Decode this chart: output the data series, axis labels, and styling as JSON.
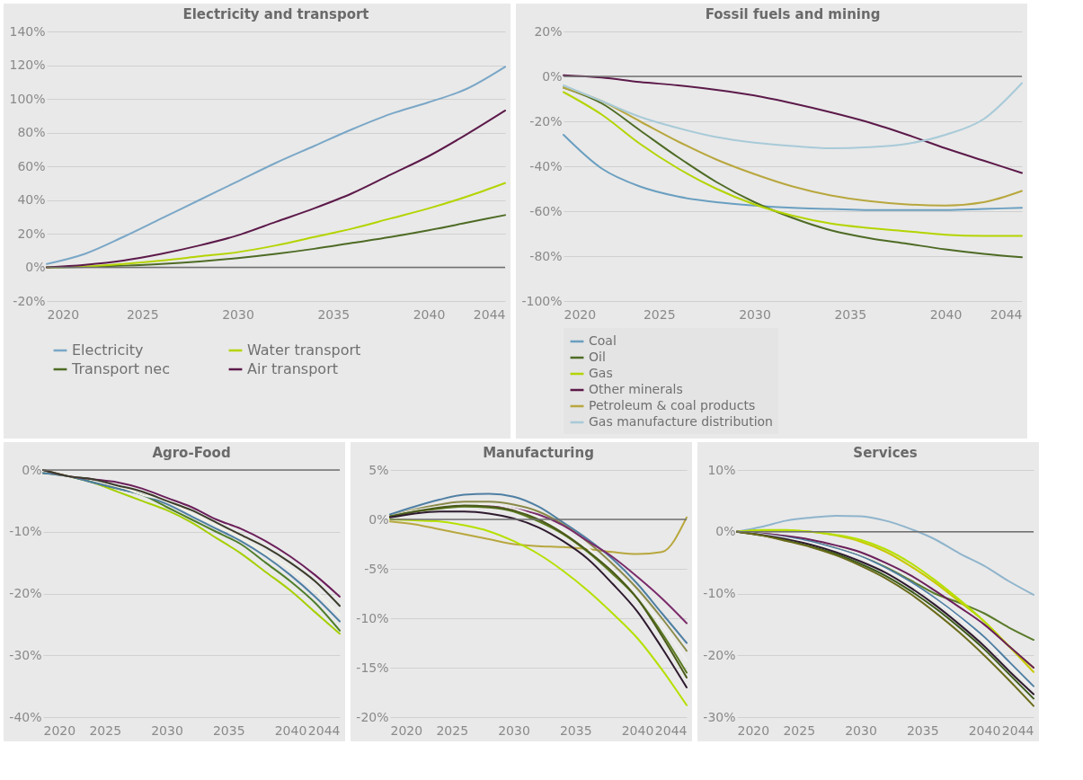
{
  "chart_data": [
    {
      "type": "line",
      "title": "Electricity and transport",
      "x": [
        2020,
        2022,
        2024,
        2026,
        2028,
        2030,
        2032,
        2034,
        2036,
        2038,
        2040,
        2042,
        2044
      ],
      "xlim": [
        2020,
        2044
      ],
      "xticks": [
        2020,
        2025,
        2030,
        2035,
        2040,
        2044
      ],
      "ylim": [
        -20,
        140
      ],
      "yticks": [
        {
          "value": -20,
          "label": "-20%"
        },
        {
          "value": 0,
          "label": "0%"
        },
        {
          "value": 20,
          "label": "20%"
        },
        {
          "value": 40,
          "label": "40%"
        },
        {
          "value": 60,
          "label": "60%"
        },
        {
          "value": 80,
          "label": "80%"
        },
        {
          "value": 100,
          "label": "100%"
        },
        {
          "value": 120,
          "label": "120%"
        },
        {
          "value": 140,
          "label": "140%"
        }
      ],
      "grid": "y",
      "legend": "bottom",
      "ref_lines": [
        {
          "axis": "y",
          "value": 0
        }
      ],
      "series": [
        {
          "name": "Electricity",
          "color": "#7aa7c7",
          "values": [
            2,
            8,
            18,
            29,
            40,
            51,
            62,
            72,
            82,
            91,
            98,
            106,
            119
          ]
        },
        {
          "name": "Transport nec",
          "color": "#4e6b25",
          "values": [
            0,
            0.3,
            1,
            2,
            3.5,
            5.5,
            8,
            11,
            14.5,
            18,
            22,
            26.5,
            31
          ]
        },
        {
          "name": "Water transport",
          "color": "#b4d400",
          "values": [
            0,
            0.5,
            2,
            4,
            6.5,
            9,
            13,
            18,
            23,
            29,
            35,
            42,
            50
          ]
        },
        {
          "name": "Air transport",
          "color": "#5c1a4a",
          "values": [
            0,
            1.5,
            4,
            8,
            13,
            19,
            27,
            35,
            44,
            55,
            66,
            79,
            93
          ]
        }
      ]
    },
    {
      "type": "line",
      "title": "Fossil fuels and mining",
      "x": [
        2020,
        2022,
        2024,
        2026,
        2028,
        2030,
        2032,
        2034,
        2036,
        2038,
        2040,
        2042,
        2044
      ],
      "xlim": [
        2020,
        2044
      ],
      "xticks": [
        2020,
        2025,
        2030,
        2035,
        2040,
        2044
      ],
      "ylim": [
        -100,
        20
      ],
      "yticks": [
        {
          "value": -100,
          "label": "-100%"
        },
        {
          "value": -80,
          "label": "-80%"
        },
        {
          "value": -60,
          "label": "-60%"
        },
        {
          "value": -40,
          "label": "-40%"
        },
        {
          "value": -20,
          "label": "-20%"
        },
        {
          "value": 0,
          "label": "0%"
        },
        {
          "value": 20,
          "label": "20%"
        }
      ],
      "grid": "y",
      "legend": "bottom left",
      "ref_lines": [
        {
          "axis": "y",
          "value": 0
        }
      ],
      "series": [
        {
          "name": "Coal",
          "color": "#6a9fc0",
          "values": [
            -26,
            -41,
            -49,
            -53.5,
            -56,
            -57.5,
            -58.5,
            -59,
            -59.5,
            -59.5,
            -59.5,
            -59,
            -58.5
          ]
        },
        {
          "name": "Oil",
          "color": "#4e6b25",
          "values": [
            -5,
            -12,
            -24,
            -36,
            -47,
            -56,
            -63,
            -68.5,
            -72,
            -74.5,
            -77,
            -79,
            -80.5
          ]
        },
        {
          "name": "Gas",
          "color": "#b4d400",
          "values": [
            -7,
            -17,
            -30,
            -41,
            -50,
            -57,
            -62,
            -65.5,
            -67.5,
            -69,
            -70.5,
            -71,
            -71
          ]
        },
        {
          "name": "Other minerals",
          "color": "#5c1a4a",
          "values": [
            0.5,
            -0.5,
            -2.5,
            -4,
            -6,
            -8.5,
            -12,
            -16,
            -20.5,
            -26,
            -32,
            -37.5,
            -43
          ]
        },
        {
          "name": "Petroleum & coal products",
          "color": "#b8a73e",
          "values": [
            -5,
            -11,
            -20,
            -29,
            -37,
            -43.5,
            -49,
            -53,
            -55.5,
            -57,
            -57.5,
            -56,
            -51
          ]
        },
        {
          "name": "Gas manufacture distribution",
          "color": "#a8cad8",
          "values": [
            -4,
            -11,
            -18,
            -23,
            -27,
            -29.5,
            -31,
            -32,
            -31.5,
            -30,
            -26,
            -19,
            -3
          ]
        }
      ]
    },
    {
      "type": "line",
      "title": "Agro-Food",
      "x": [
        2020,
        2022,
        2024,
        2026,
        2028,
        2030,
        2032,
        2034,
        2036,
        2038,
        2040,
        2042,
        2044
      ],
      "xlim": [
        2020,
        2044
      ],
      "xticks": [
        2020,
        2025,
        2030,
        2035,
        2040,
        2044
      ],
      "ylim": [
        -40,
        0
      ],
      "yticks": [
        {
          "value": -40,
          "label": "-40%"
        },
        {
          "value": -30,
          "label": "-30%"
        },
        {
          "value": -20,
          "label": "-20%"
        },
        {
          "value": -10,
          "label": "-10%"
        },
        {
          "value": 0,
          "label": "0%"
        }
      ],
      "grid": "y",
      "ref_lines": [
        {
          "axis": "y",
          "value": 0
        }
      ],
      "series": [
        {
          "color": "#a5cf00",
          "values": [
            0,
            -1,
            -2,
            -3.5,
            -5,
            -6.5,
            -8.5,
            -11,
            -13.5,
            -16.5,
            -19.5,
            -23,
            -26.5
          ]
        },
        {
          "color": "#4e7d2a",
          "values": [
            -0.5,
            -1,
            -2,
            -3,
            -4,
            -6,
            -8,
            -10,
            -12,
            -15,
            -18,
            -21.5,
            -26
          ]
        },
        {
          "color": "#4f7fa3",
          "values": [
            -0.5,
            -1,
            -2,
            -3,
            -4,
            -5.5,
            -7.5,
            -9.5,
            -11.5,
            -14,
            -17,
            -20.5,
            -24.5
          ]
        },
        {
          "color": "#f2f2e6",
          "values": [
            0,
            -1,
            -1.5,
            -2.5,
            -4,
            -5,
            -7,
            -9,
            -11,
            -13.5,
            -16,
            -19.5,
            -23.5
          ]
        },
        {
          "color": "#6b1f5a",
          "values": [
            0,
            -1,
            -1.5,
            -2,
            -3,
            -4.5,
            -6,
            -8,
            -9.5,
            -11.5,
            -14,
            -17,
            -20.5
          ]
        },
        {
          "color": "#3b3b2b",
          "values": [
            0,
            -1,
            -1.5,
            -2.5,
            -3.5,
            -5,
            -6.5,
            -8.5,
            -10.5,
            -12.5,
            -15,
            -18,
            -22
          ]
        }
      ]
    },
    {
      "type": "line",
      "title": "Manufacturing",
      "x": [
        2020,
        2022,
        2024,
        2026,
        2028,
        2030,
        2032,
        2034,
        2036,
        2038,
        2040,
        2042,
        2044
      ],
      "xlim": [
        2020,
        2044
      ],
      "xticks": [
        2020,
        2025,
        2030,
        2035,
        2040,
        2044
      ],
      "ylim": [
        -20,
        5
      ],
      "yticks": [
        {
          "value": -20,
          "label": "-20%"
        },
        {
          "value": -15,
          "label": "-15%"
        },
        {
          "value": -10,
          "label": "-10%"
        },
        {
          "value": -5,
          "label": "-5%"
        },
        {
          "value": 0,
          "label": "0%"
        },
        {
          "value": 5,
          "label": "5%"
        }
      ],
      "grid": "y",
      "ref_lines": [
        {
          "axis": "y",
          "value": 0
        }
      ],
      "series": [
        {
          "color": "#b8a73e",
          "values": [
            -0.2,
            -0.5,
            -1,
            -1.5,
            -2,
            -2.5,
            -2.7,
            -2.8,
            -3,
            -3.3,
            -3.5,
            -3.3,
            0.2
          ]
        },
        {
          "color": "#b5e000",
          "values": [
            0,
            -0.1,
            -0.2,
            -0.6,
            -1.2,
            -2.2,
            -3.5,
            -5.2,
            -7.2,
            -9.5,
            -12,
            -15.2,
            -18.8
          ]
        },
        {
          "color": "#4f7fa3",
          "values": [
            0.5,
            1.3,
            2,
            2.5,
            2.6,
            2.3,
            1.3,
            -0.3,
            -2,
            -4,
            -6.5,
            -9.5,
            -12.5
          ]
        },
        {
          "color": "#8a8a4a",
          "values": [
            0.3,
            1,
            1.5,
            1.8,
            1.8,
            1.5,
            0.8,
            -0.5,
            -2.3,
            -4.5,
            -7,
            -10,
            -13.3
          ]
        },
        {
          "color": "#7a2a6a",
          "values": [
            0.3,
            0.8,
            1.2,
            1.4,
            1.4,
            1.1,
            0.5,
            -0.6,
            -2.2,
            -3.8,
            -5.8,
            -8,
            -10.5
          ]
        },
        {
          "color": "#f0f0f0",
          "values": [
            0.3,
            0.9,
            1.3,
            1.5,
            1.5,
            1.1,
            0.2,
            -1.1,
            -2.9,
            -5,
            -7.5,
            -10.7,
            -14.3
          ]
        },
        {
          "color": "#5a7a1e",
          "values": [
            0.3,
            0.8,
            1.1,
            1.3,
            1.2,
            0.8,
            -0.2,
            -1.5,
            -3.3,
            -5.5,
            -8,
            -11.5,
            -15.5
          ]
        },
        {
          "color": "#4a5a1a",
          "values": [
            0.3,
            0.8,
            1.2,
            1.4,
            1.3,
            0.9,
            0,
            -1.4,
            -3.2,
            -5.3,
            -8,
            -11.8,
            -16
          ]
        },
        {
          "color": "#2e1a2e",
          "values": [
            0.2,
            0.6,
            0.8,
            0.8,
            0.6,
            0.1,
            -0.8,
            -2.2,
            -4,
            -6.5,
            -9.3,
            -13,
            -17
          ]
        }
      ]
    },
    {
      "type": "line",
      "title": "Services",
      "x": [
        2020,
        2022,
        2024,
        2026,
        2028,
        2030,
        2032,
        2034,
        2036,
        2038,
        2040,
        2042,
        2044
      ],
      "xlim": [
        2020,
        2044
      ],
      "xticks": [
        2020,
        2025,
        2030,
        2035,
        2040,
        2044
      ],
      "ylim": [
        -30,
        10
      ],
      "yticks": [
        {
          "value": -30,
          "label": "-30%"
        },
        {
          "value": -20,
          "label": "-20%"
        },
        {
          "value": -10,
          "label": "-10%"
        },
        {
          "value": 0,
          "label": "0%"
        },
        {
          "value": 10,
          "label": "10%"
        }
      ],
      "grid": "y",
      "ref_lines": [
        {
          "axis": "y",
          "value": 0
        }
      ],
      "series": [
        {
          "color": "#8fb4cc",
          "values": [
            0,
            0.8,
            1.8,
            2.3,
            2.6,
            2.5,
            1.8,
            0.5,
            -1.2,
            -3.5,
            -5.5,
            -8,
            -10.2
          ]
        },
        {
          "color": "#5a7a2a",
          "values": [
            0,
            -0.3,
            -0.8,
            -1.6,
            -2.7,
            -4,
            -5.7,
            -7.8,
            -10,
            -11.5,
            -13.2,
            -15.5,
            -17.5
          ]
        },
        {
          "color": "#c8c800",
          "values": [
            0,
            0.2,
            0.2,
            0,
            -0.6,
            -1.6,
            -3.2,
            -5.5,
            -8.2,
            -11.3,
            -14.5,
            -18.5,
            -22.7
          ]
        },
        {
          "color": "#b5e000",
          "values": [
            0,
            0.3,
            0.3,
            0,
            -0.5,
            -1.3,
            -2.8,
            -5,
            -7.8,
            -11,
            -14.5,
            -18.5,
            -22
          ]
        },
        {
          "color": "#6b1f5a",
          "values": [
            0,
            -0.3,
            -0.7,
            -1.3,
            -2.2,
            -3.3,
            -5,
            -7,
            -9.5,
            -12.2,
            -15,
            -18.5,
            -22
          ]
        },
        {
          "color": "#4f7fa3",
          "values": [
            0,
            -0.4,
            -0.9,
            -1.6,
            -2.7,
            -4,
            -5.8,
            -8,
            -10.7,
            -13.7,
            -17,
            -21,
            -25
          ]
        },
        {
          "color": "#f0f0f0",
          "values": [
            0,
            -0.4,
            -1,
            -1.8,
            -2.9,
            -4.2,
            -6.1,
            -8.4,
            -11,
            -14,
            -17.5,
            -21.5,
            -25.5
          ]
        },
        {
          "color": "#2e1a2e",
          "values": [
            0,
            -0.5,
            -1.2,
            -2.1,
            -3.3,
            -4.8,
            -6.6,
            -9,
            -11.8,
            -15,
            -18.5,
            -22.5,
            -26.3
          ]
        },
        {
          "color": "#3b5a1a",
          "values": [
            0,
            -0.6,
            -1.4,
            -2.4,
            -3.6,
            -5.2,
            -7.1,
            -9.5,
            -12.3,
            -15.5,
            -19,
            -23,
            -27
          ]
        },
        {
          "color": "#6b6b1a",
          "values": [
            0,
            -0.6,
            -1.5,
            -2.5,
            -3.8,
            -5.5,
            -7.5,
            -10,
            -13,
            -16.3,
            -20,
            -24,
            -28.2
          ]
        }
      ]
    }
  ]
}
